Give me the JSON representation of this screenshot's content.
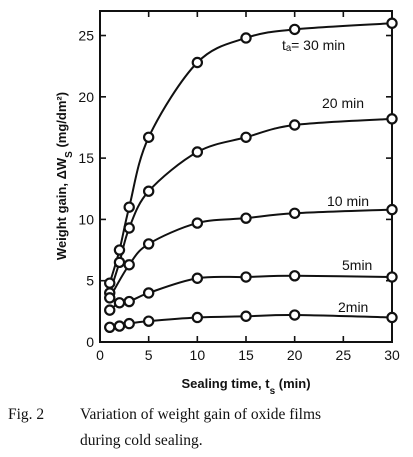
{
  "chart_data": {
    "type": "line",
    "xlabel": "Sealing time, t",
    "xlabel_sub": "s",
    "xlabel_unit": "(min)",
    "ylabel": "Weight gain, ΔW",
    "ylabel_sub": "S",
    "ylabel_unit": "(mg/dm²)",
    "xlim": [
      0,
      30
    ],
    "ylim": [
      0,
      27
    ],
    "xticks": [
      0,
      5,
      10,
      15,
      20,
      25,
      30
    ],
    "yticks": [
      0,
      5,
      10,
      15,
      20,
      25
    ],
    "grid": false,
    "series": [
      {
        "name": "tₐ= 30 min",
        "x": [
          1,
          2,
          3,
          5,
          10,
          15,
          20,
          30
        ],
        "y": [
          4.8,
          7.5,
          11.0,
          16.7,
          22.8,
          24.8,
          25.5,
          26.0
        ]
      },
      {
        "name": "20 min",
        "x": [
          1,
          2,
          3,
          5,
          10,
          15,
          20,
          30
        ],
        "y": [
          4.0,
          6.5,
          9.3,
          12.3,
          15.5,
          16.7,
          17.7,
          18.2
        ]
      },
      {
        "name": "10 min",
        "x": [
          1,
          3,
          5,
          10,
          15,
          20,
          30
        ],
        "y": [
          3.6,
          6.3,
          8.0,
          9.7,
          10.1,
          10.5,
          10.8
        ]
      },
      {
        "name": "5min",
        "x": [
          1,
          2,
          3,
          5,
          10,
          15,
          20,
          30
        ],
        "y": [
          2.6,
          3.2,
          3.3,
          4.0,
          5.2,
          5.3,
          5.4,
          5.3
        ]
      },
      {
        "name": "2min",
        "x": [
          1,
          2,
          3,
          5,
          10,
          15,
          20,
          30
        ],
        "y": [
          1.2,
          1.3,
          1.5,
          1.7,
          2.0,
          2.1,
          2.2,
          2.0
        ]
      }
    ]
  },
  "caption": {
    "label": "Fig. 2",
    "line1": "Variation of weight gain of oxide films",
    "line2": "during cold sealing."
  }
}
